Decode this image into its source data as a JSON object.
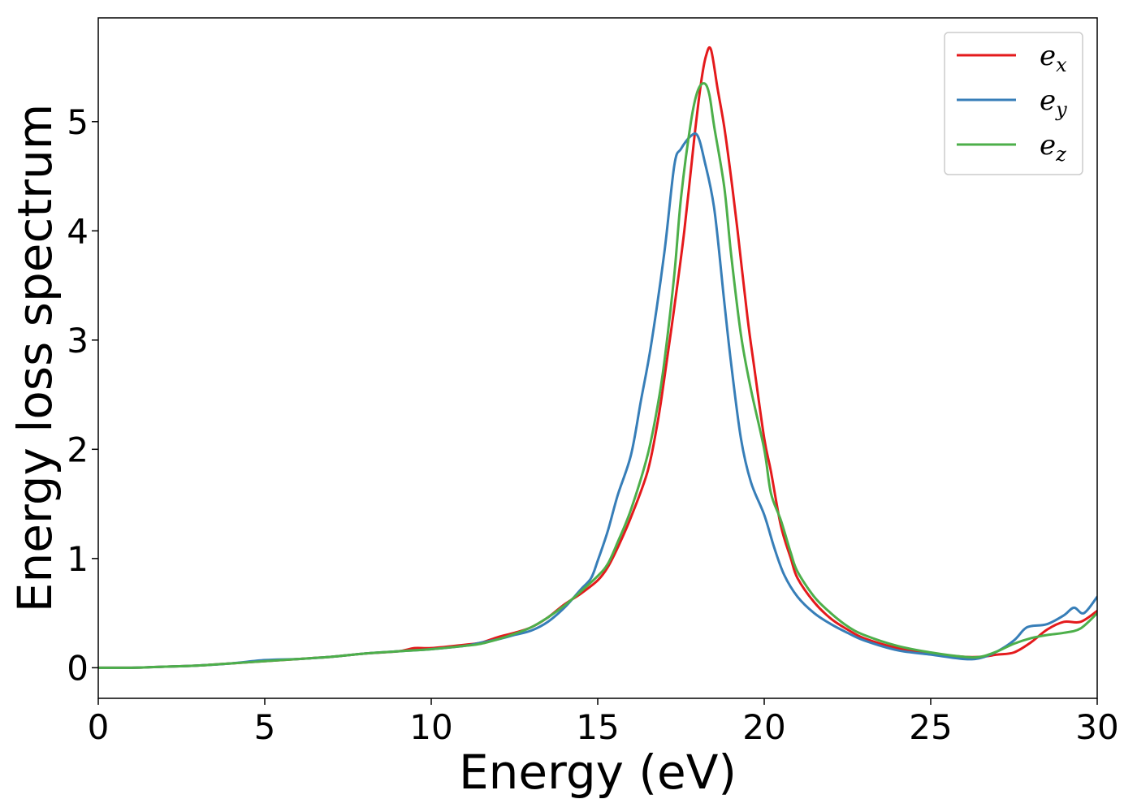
{
  "chart_data": {
    "type": "line",
    "title": "",
    "xlabel": "Energy (eV)",
    "ylabel": "Energy loss spectrum",
    "xlim": [
      0,
      30
    ],
    "ylim": [
      -0.28,
      5.95
    ],
    "xticks": [
      0,
      5,
      10,
      15,
      20,
      25,
      30
    ],
    "yticks": [
      0,
      1,
      2,
      3,
      4,
      5
    ],
    "grid": false,
    "legend_position": "top-right",
    "series": [
      {
        "name": "e_x",
        "label_base": "e",
        "label_sub": "x",
        "color": "#e41a1c",
        "x": [
          0,
          1,
          2,
          3,
          4,
          5,
          6,
          7,
          8,
          9,
          9.5,
          10,
          11,
          11.5,
          12,
          12.5,
          13,
          13.5,
          14,
          14.5,
          15,
          15.3,
          15.6,
          16,
          16.5,
          16.8,
          17,
          17.3,
          17.6,
          17.9,
          18.1,
          18.25,
          18.4,
          18.6,
          18.8,
          19,
          19.2,
          19.5,
          19.7,
          20,
          20.2,
          20.5,
          20.8,
          21,
          21.5,
          22,
          22.5,
          23,
          24,
          25,
          26,
          26.5,
          27,
          27.5,
          28,
          28.5,
          29,
          29.5,
          30
        ],
        "y": [
          0,
          0,
          0.01,
          0.02,
          0.04,
          0.06,
          0.08,
          0.1,
          0.13,
          0.15,
          0.18,
          0.18,
          0.21,
          0.23,
          0.28,
          0.32,
          0.37,
          0.46,
          0.58,
          0.68,
          0.8,
          0.92,
          1.1,
          1.38,
          1.8,
          2.25,
          2.65,
          3.3,
          4.0,
          4.85,
          5.35,
          5.6,
          5.66,
          5.3,
          4.95,
          4.5,
          4.0,
          3.2,
          2.75,
          2.1,
          1.8,
          1.3,
          1.0,
          0.82,
          0.6,
          0.45,
          0.35,
          0.27,
          0.18,
          0.13,
          0.1,
          0.1,
          0.12,
          0.14,
          0.23,
          0.35,
          0.42,
          0.42,
          0.52
        ]
      },
      {
        "name": "e_y",
        "label_base": "e",
        "label_sub": "y",
        "color": "#377eb8",
        "x": [
          0,
          1,
          2,
          3,
          4,
          5,
          6,
          7,
          8,
          9,
          10,
          11,
          11.5,
          12,
          12.5,
          13,
          13.5,
          14,
          14.5,
          14.8,
          15,
          15.3,
          15.6,
          16,
          16.3,
          16.6,
          17,
          17.3,
          17.5,
          17.8,
          18,
          18.2,
          18.5,
          18.8,
          19,
          19.3,
          19.6,
          20,
          20.3,
          20.6,
          21,
          21.5,
          22,
          22.5,
          23,
          24,
          25,
          26,
          26.5,
          27,
          27.5,
          27.8,
          28,
          28.5,
          29,
          29.3,
          29.6,
          30
        ],
        "y": [
          0,
          0,
          0.01,
          0.02,
          0.04,
          0.07,
          0.08,
          0.1,
          0.13,
          0.15,
          0.17,
          0.2,
          0.23,
          0.26,
          0.3,
          0.34,
          0.42,
          0.55,
          0.72,
          0.82,
          0.98,
          1.25,
          1.58,
          1.95,
          2.45,
          2.95,
          3.8,
          4.6,
          4.75,
          4.87,
          4.87,
          4.65,
          4.2,
          3.35,
          2.8,
          2.1,
          1.7,
          1.4,
          1.1,
          0.85,
          0.65,
          0.5,
          0.4,
          0.32,
          0.25,
          0.16,
          0.12,
          0.08,
          0.09,
          0.15,
          0.25,
          0.35,
          0.38,
          0.4,
          0.48,
          0.55,
          0.5,
          0.65
        ]
      },
      {
        "name": "e_z",
        "label_base": "e",
        "label_sub": "z",
        "color": "#4daf4a",
        "x": [
          0,
          1,
          2,
          3,
          4,
          5,
          6,
          7,
          8,
          9,
          10,
          11,
          11.5,
          12,
          12.5,
          13,
          13.5,
          14,
          14.5,
          15,
          15.3,
          15.6,
          16,
          16.5,
          16.8,
          17,
          17.3,
          17.5,
          17.8,
          18,
          18.2,
          18.35,
          18.5,
          18.8,
          19,
          19.3,
          19.6,
          20,
          20.2,
          20.5,
          20.8,
          21,
          21.5,
          22,
          22.5,
          23,
          24,
          25,
          26,
          26.5,
          27,
          27.5,
          28,
          28.5,
          29,
          29.5,
          30
        ],
        "y": [
          0,
          0,
          0.01,
          0.02,
          0.04,
          0.06,
          0.08,
          0.1,
          0.13,
          0.15,
          0.17,
          0.2,
          0.22,
          0.26,
          0.31,
          0.37,
          0.46,
          0.57,
          0.7,
          0.84,
          0.95,
          1.15,
          1.45,
          1.95,
          2.4,
          2.8,
          3.6,
          4.3,
          5.0,
          5.28,
          5.35,
          5.25,
          4.95,
          4.4,
          3.8,
          3.05,
          2.55,
          2.0,
          1.6,
          1.35,
          1.05,
          0.88,
          0.65,
          0.5,
          0.38,
          0.3,
          0.2,
          0.14,
          0.1,
          0.1,
          0.15,
          0.22,
          0.27,
          0.3,
          0.32,
          0.36,
          0.5
        ]
      }
    ]
  }
}
